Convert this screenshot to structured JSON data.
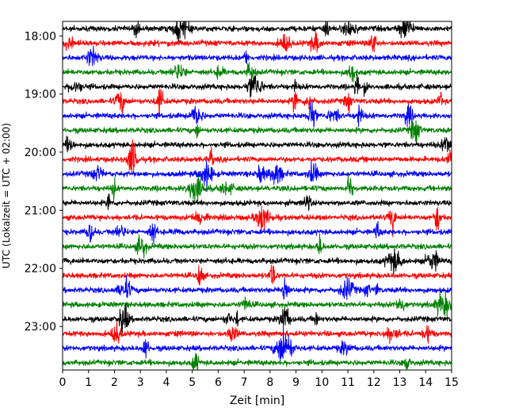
{
  "chart_data": {
    "type": "line",
    "title": "",
    "xlabel": "Zeit  [min]",
    "ylabel": "UTC (Lokalzeit = UTC + 02:00)",
    "xlim": [
      0,
      15
    ],
    "x_ticks": [
      "0",
      "1",
      "2",
      "3",
      "4",
      "5",
      "6",
      "7",
      "8",
      "9",
      "10",
      "11",
      "12",
      "13",
      "14",
      "15"
    ],
    "y_ticks": [
      "18:00",
      "19:00",
      "20:00",
      "21:00",
      "22:00",
      "23:00"
    ],
    "trace_interval_minutes": 15,
    "start_time": "17:45",
    "end_time": "23:45",
    "trace_colors": [
      "#000000",
      "#ff0000",
      "#0000ff",
      "#008000"
    ],
    "grid": false,
    "legend": "none"
  }
}
